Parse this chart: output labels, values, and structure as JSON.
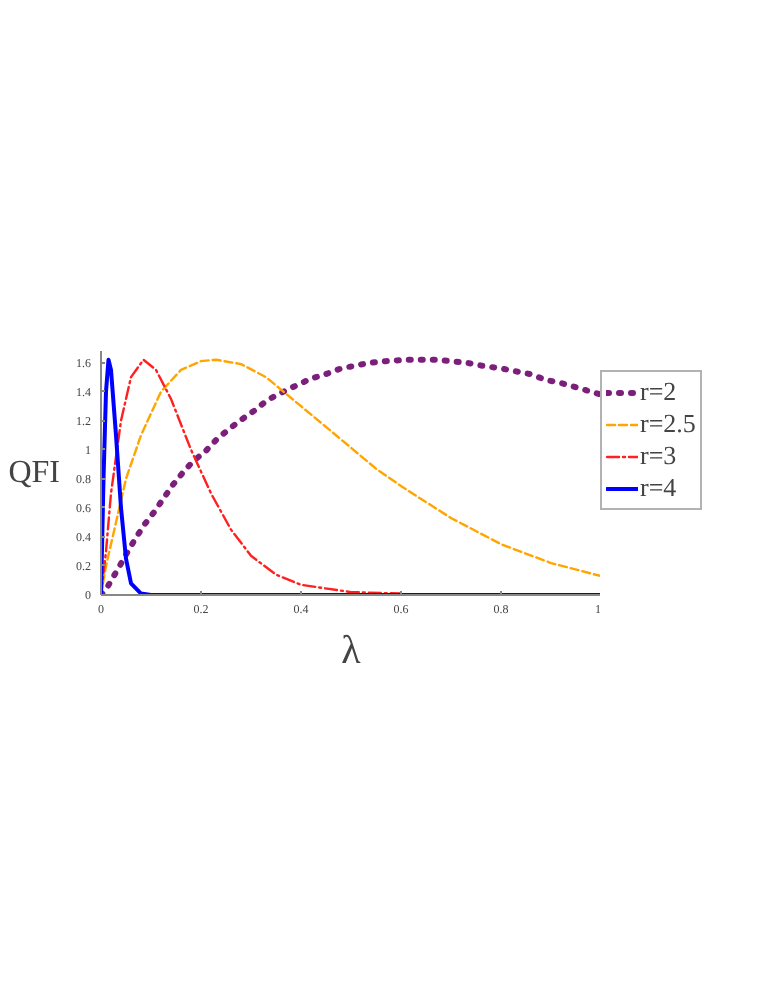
{
  "chart_data": {
    "type": "line",
    "xlabel": "λ",
    "ylabel": "QFI",
    "xlim": [
      0,
      1
    ],
    "ylim": [
      0,
      1.68
    ],
    "xticks": [
      0,
      0.2,
      0.4,
      0.6,
      0.8,
      {
        "value": 1,
        "label": "1"
      }
    ],
    "yticks": [
      0,
      0.2,
      0.4,
      0.6,
      0.8,
      {
        "value": 1,
        "label": "1"
      },
      1.2,
      1.4,
      1.6
    ],
    "grid": false,
    "legend": "right",
    "marker": "none",
    "series": [
      {
        "name": "r=2",
        "color": "#7b1f7b",
        "line_style": "dotted",
        "x": [
          0,
          0.012,
          0.039,
          0.052,
          0.069,
          0.088,
          0.106,
          0.124,
          0.144,
          0.163,
          0.184,
          0.209,
          0.231,
          0.255,
          0.282,
          0.307,
          0.332,
          0.359,
          0.389,
          0.42,
          0.449,
          0.48,
          0.51,
          0.54,
          0.57,
          0.61,
          0.64,
          0.67,
          0.7,
          0.73,
          0.76,
          0.8,
          0.83,
          0.86,
          0.89,
          0.92,
          0.95,
          0.98,
          1.0
        ],
        "values": [
          0,
          0.05,
          0.21,
          0.29,
          0.39,
          0.49,
          0.57,
          0.66,
          0.76,
          0.84,
          0.92,
          0.99,
          1.07,
          1.14,
          1.21,
          1.27,
          1.34,
          1.39,
          1.44,
          1.49,
          1.52,
          1.56,
          1.58,
          1.6,
          1.61,
          1.62,
          1.62,
          1.62,
          1.61,
          1.6,
          1.58,
          1.56,
          1.54,
          1.52,
          1.48,
          1.46,
          1.43,
          1.4,
          1.38
        ]
      },
      {
        "name": "r=2.5",
        "color": "#ffa500",
        "line_style": "dashed",
        "x": [
          0,
          0.01,
          0.03,
          0.05,
          0.08,
          0.12,
          0.16,
          0.2,
          0.23,
          0.28,
          0.33,
          0.4,
          0.47,
          0.55,
          0.6,
          0.7,
          0.8,
          0.9,
          1.0
        ],
        "values": [
          0,
          0.2,
          0.5,
          0.8,
          1.1,
          1.4,
          1.55,
          1.61,
          1.62,
          1.59,
          1.5,
          1.3,
          1.1,
          0.87,
          0.75,
          0.53,
          0.35,
          0.22,
          0.13
        ]
      },
      {
        "name": "r=3",
        "color": "#ff2020",
        "line_style": "dashdot",
        "x": [
          0,
          0.01,
          0.02,
          0.04,
          0.06,
          0.085,
          0.11,
          0.14,
          0.18,
          0.22,
          0.26,
          0.3,
          0.35,
          0.4,
          0.5,
          0.6
        ],
        "values": [
          0,
          0.3,
          0.7,
          1.2,
          1.5,
          1.62,
          1.55,
          1.35,
          1.0,
          0.7,
          0.45,
          0.27,
          0.14,
          0.07,
          0.02,
          0.01
        ]
      },
      {
        "name": "r=4",
        "color": "#0000ff",
        "line_style": "solid",
        "x": [
          0,
          0.005,
          0.01,
          0.015,
          0.02,
          0.03,
          0.04,
          0.05,
          0.06,
          0.08,
          0.1,
          1.0
        ],
        "values": [
          0,
          0.8,
          1.4,
          1.62,
          1.55,
          1.1,
          0.6,
          0.25,
          0.08,
          0.01,
          0,
          0
        ]
      }
    ]
  }
}
